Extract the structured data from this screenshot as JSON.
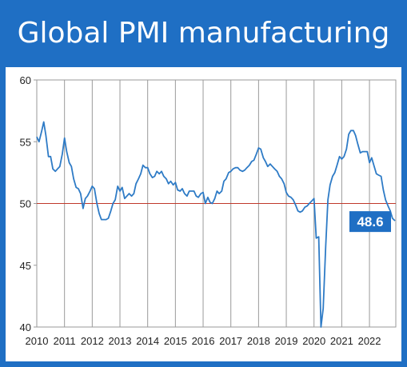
{
  "title": "Global PMI manufacturing",
  "colors": {
    "frame": "#1f6fc4",
    "line": "#2e7bc6",
    "reference": "#c0392b",
    "grid": "#9a9a9a",
    "callout_bg": "#1f6fc4"
  },
  "callout": {
    "value": 48.6,
    "text": "48.6"
  },
  "chart_data": {
    "type": "line",
    "title": "Global PMI manufacturing",
    "xlabel": "",
    "ylabel": "",
    "ylim": [
      40,
      60
    ],
    "yticks": [
      40,
      45,
      50,
      55,
      60
    ],
    "xticks": [
      "2010",
      "2011",
      "2012",
      "2013",
      "2014",
      "2015",
      "2016",
      "2017",
      "2018",
      "2019",
      "2020",
      "2021",
      "2022"
    ],
    "xrange": [
      2010.0,
      2022.95
    ],
    "reference_line": 50,
    "grid": "vertical",
    "series": [
      {
        "x": [
          2010.0,
          2010.08,
          2010.17,
          2010.25,
          2010.33,
          2010.42,
          2010.5,
          2010.58,
          2010.67,
          2010.75,
          2010.83,
          2010.92,
          2011.0,
          2011.08,
          2011.17,
          2011.25,
          2011.33,
          2011.42,
          2011.5,
          2011.58,
          2011.67,
          2011.75,
          2011.83,
          2011.92,
          2012.0,
          2012.08,
          2012.17,
          2012.25,
          2012.33,
          2012.42,
          2012.5,
          2012.58,
          2012.67,
          2012.75,
          2012.83,
          2012.92,
          2013.0,
          2013.08,
          2013.17,
          2013.25,
          2013.33,
          2013.42,
          2013.5,
          2013.58,
          2013.67,
          2013.75,
          2013.83,
          2013.92,
          2014.0,
          2014.08,
          2014.17,
          2014.25,
          2014.33,
          2014.42,
          2014.5,
          2014.58,
          2014.67,
          2014.75,
          2014.83,
          2014.92,
          2015.0,
          2015.08,
          2015.17,
          2015.25,
          2015.33,
          2015.42,
          2015.5,
          2015.58,
          2015.67,
          2015.75,
          2015.83,
          2015.92,
          2016.0,
          2016.08,
          2016.17,
          2016.25,
          2016.33,
          2016.42,
          2016.5,
          2016.58,
          2016.67,
          2016.75,
          2016.83,
          2016.92,
          2017.0,
          2017.08,
          2017.17,
          2017.25,
          2017.33,
          2017.42,
          2017.5,
          2017.58,
          2017.67,
          2017.75,
          2017.83,
          2017.92,
          2018.0,
          2018.08,
          2018.17,
          2018.25,
          2018.33,
          2018.42,
          2018.5,
          2018.58,
          2018.67,
          2018.75,
          2018.83,
          2018.92,
          2019.0,
          2019.08,
          2019.17,
          2019.25,
          2019.33,
          2019.42,
          2019.5,
          2019.58,
          2019.67,
          2019.75,
          2019.83,
          2019.92,
          2020.0,
          2020.08,
          2020.17,
          2020.25,
          2020.33,
          2020.42,
          2020.5,
          2020.58,
          2020.67,
          2020.75,
          2020.83,
          2020.92,
          2021.0,
          2021.08,
          2021.17,
          2021.25,
          2021.33,
          2021.42,
          2021.5,
          2021.58,
          2021.67,
          2021.75,
          2021.83,
          2021.92,
          2022.0,
          2022.08,
          2022.17,
          2022.25,
          2022.33,
          2022.42,
          2022.5,
          2022.58,
          2022.67,
          2022.75,
          2022.83,
          2022.92
        ],
        "values": [
          55.4,
          55.0,
          55.8,
          56.6,
          55.5,
          53.8,
          53.8,
          52.8,
          52.6,
          52.8,
          53.0,
          54.0,
          55.3,
          54.2,
          53.3,
          53.0,
          52.0,
          51.3,
          51.2,
          50.8,
          49.6,
          50.4,
          50.6,
          51.0,
          51.4,
          51.2,
          50.0,
          49.2,
          48.7,
          48.7,
          48.7,
          48.8,
          49.4,
          50.0,
          50.3,
          51.4,
          51.0,
          51.3,
          50.4,
          50.6,
          50.8,
          50.6,
          50.8,
          51.6,
          52.0,
          52.4,
          53.1,
          52.9,
          52.9,
          52.4,
          52.1,
          52.2,
          52.6,
          52.4,
          52.6,
          52.2,
          52.0,
          51.6,
          51.8,
          51.5,
          51.7,
          51.1,
          51.0,
          51.2,
          50.8,
          50.6,
          51.0,
          51.0,
          51.0,
          50.6,
          50.5,
          50.8,
          50.9,
          50.0,
          50.5,
          50.1,
          50.0,
          50.4,
          51.0,
          50.8,
          51.0,
          51.8,
          52.0,
          52.5,
          52.6,
          52.8,
          52.9,
          52.9,
          52.7,
          52.6,
          52.7,
          52.9,
          53.1,
          53.4,
          53.5,
          54.0,
          54.5,
          54.4,
          53.7,
          53.4,
          53.0,
          53.2,
          53.0,
          52.8,
          52.6,
          52.2,
          52.0,
          51.6,
          50.9,
          50.6,
          50.5,
          50.3,
          49.9,
          49.4,
          49.3,
          49.4,
          49.7,
          49.8,
          50.0,
          50.2,
          50.4,
          47.2,
          47.3,
          40.0,
          41.5,
          46.5,
          50.3,
          51.5,
          52.2,
          52.5,
          53.1,
          53.8,
          53.6,
          53.8,
          54.4,
          55.6,
          55.9,
          55.9,
          55.5,
          54.8,
          54.1,
          54.2,
          54.2,
          54.2,
          53.3,
          53.7,
          53.0,
          52.4,
          52.3,
          52.2,
          51.1,
          50.3,
          49.8,
          49.4,
          48.8,
          48.6
        ]
      }
    ]
  }
}
